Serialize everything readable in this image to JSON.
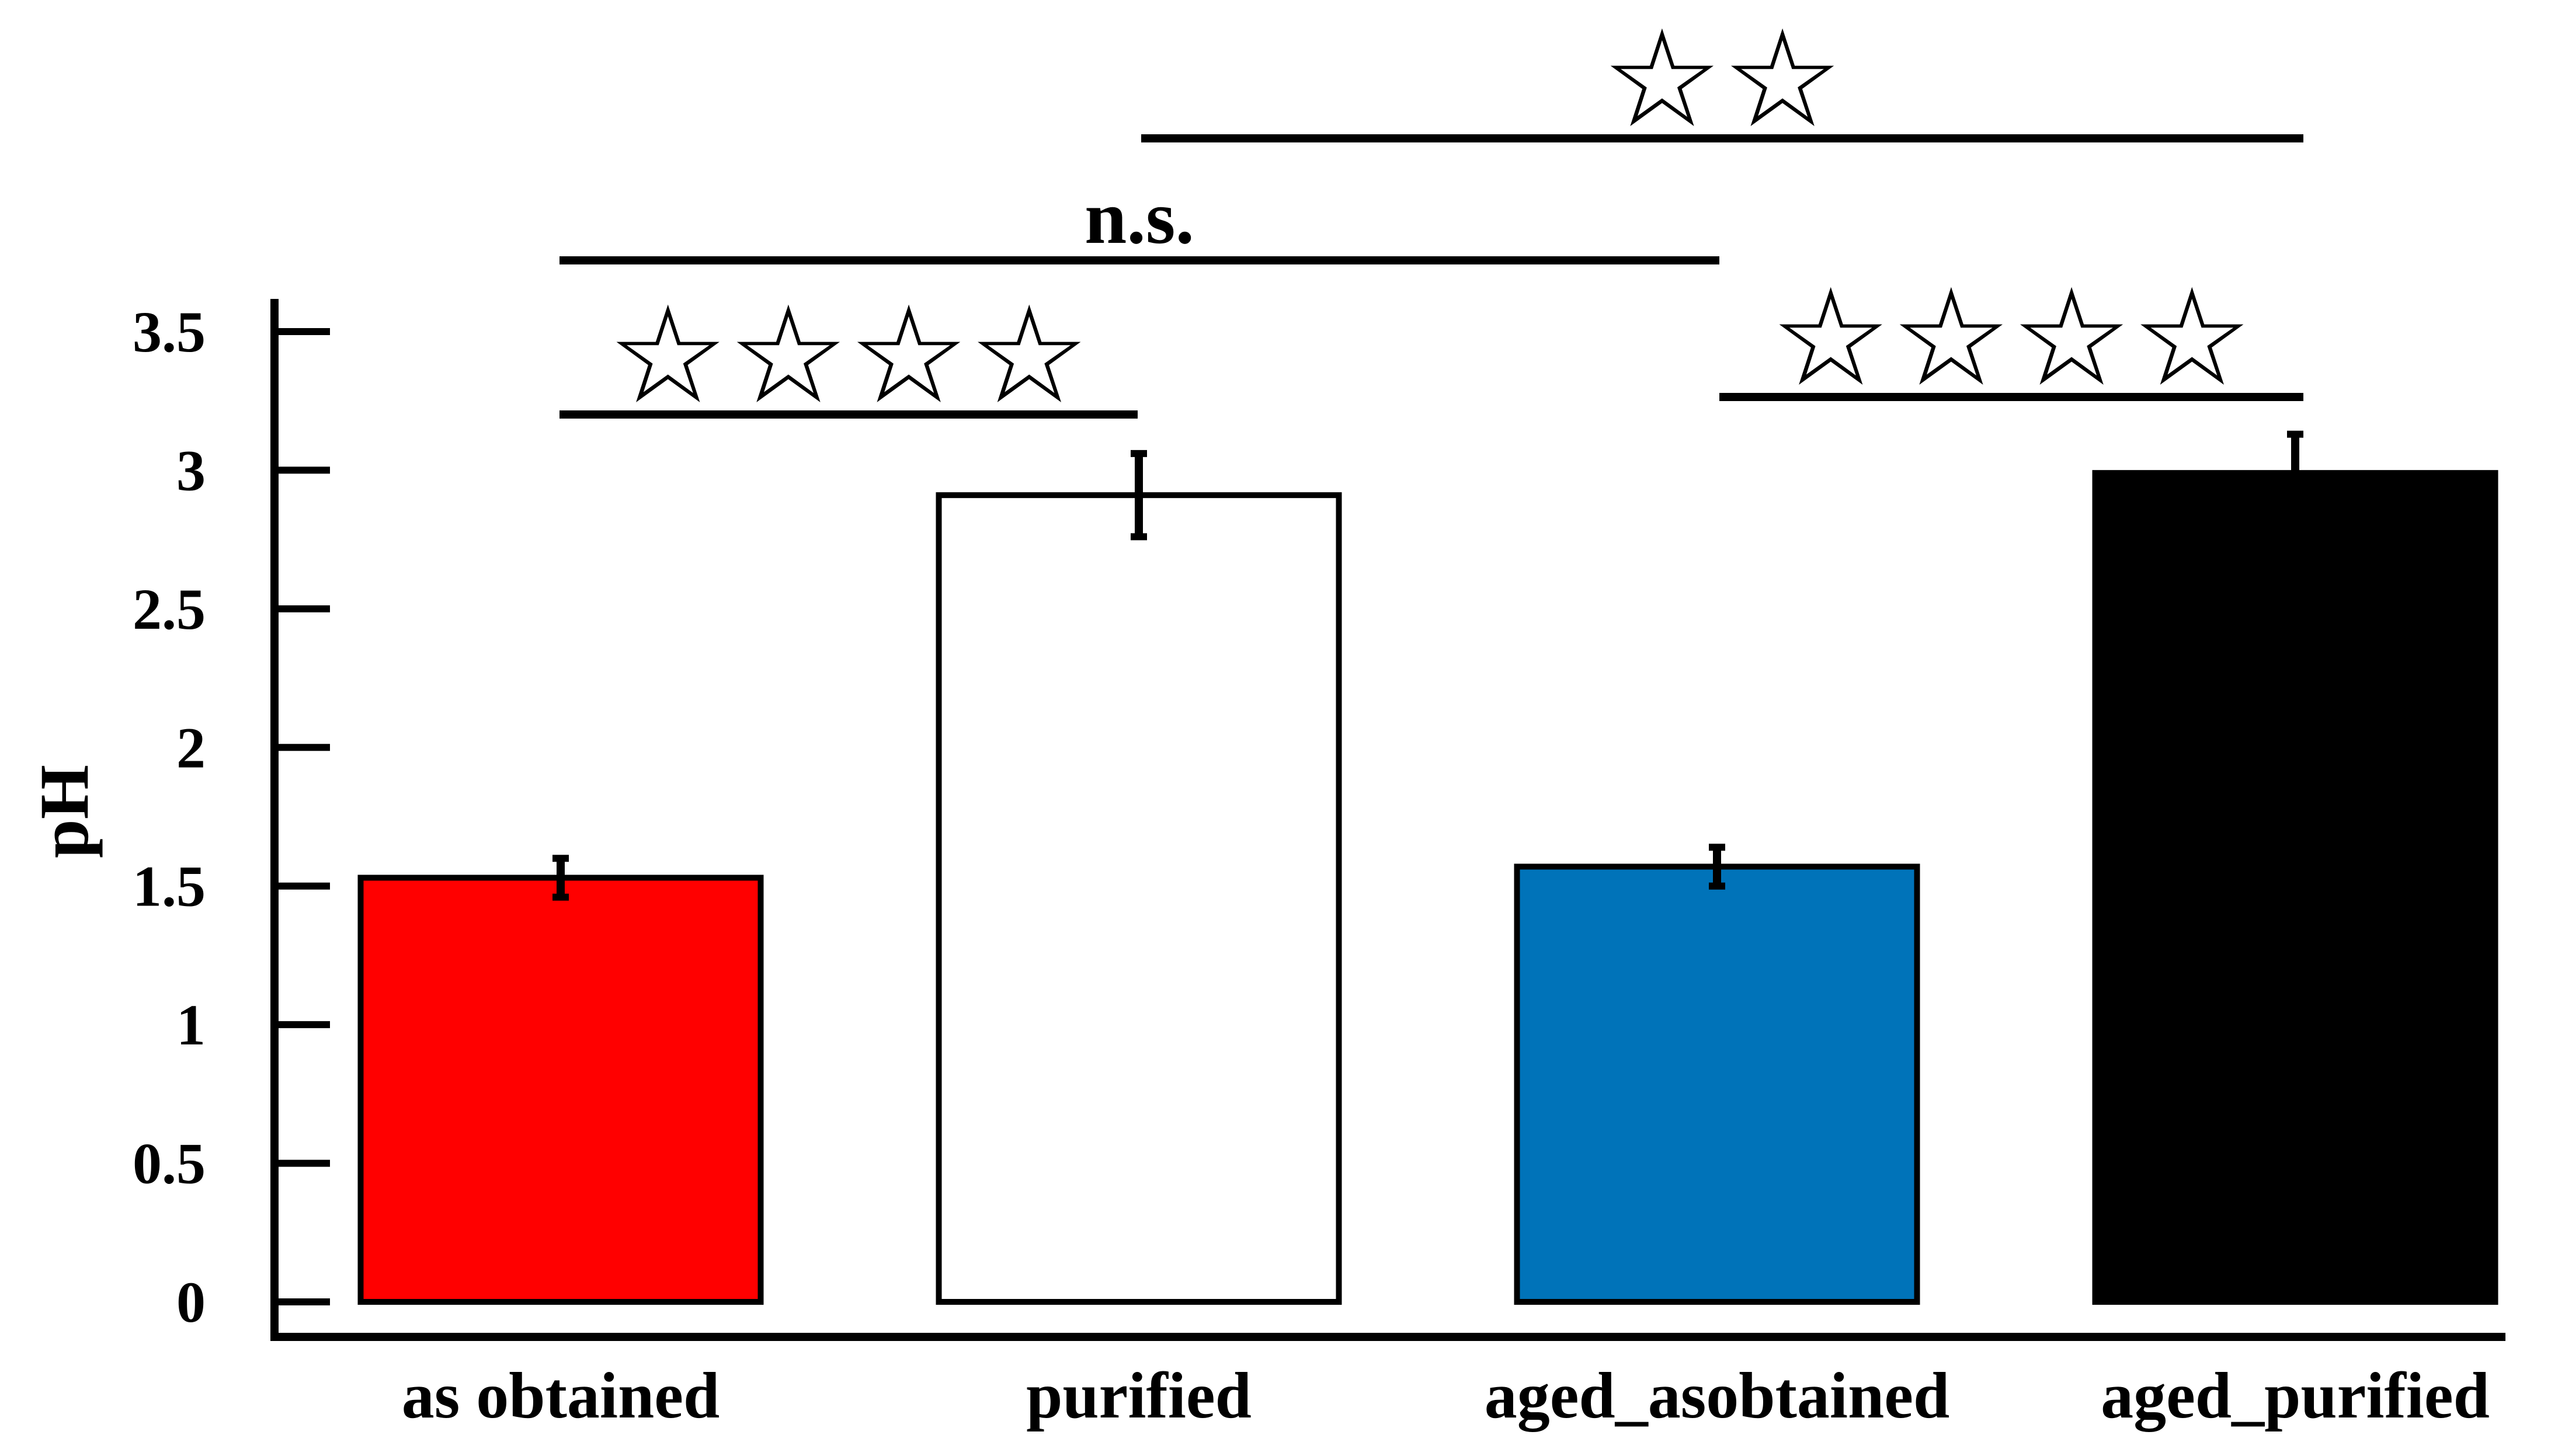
{
  "chart_data": {
    "type": "bar",
    "title": "",
    "xlabel": "",
    "ylabel": "pH",
    "ylim": [
      0,
      3.5
    ],
    "yticks": [
      {
        "value": 0,
        "label": "0"
      },
      {
        "value": 0.5,
        "label": "0.5"
      },
      {
        "value": 1,
        "label": "1"
      },
      {
        "value": 1.5,
        "label": "1.5"
      },
      {
        "value": 2,
        "label": "2"
      },
      {
        "value": 2.5,
        "label": "2.5"
      },
      {
        "value": 3,
        "label": "3"
      },
      {
        "value": 3.5,
        "label": "3.5"
      }
    ],
    "categories": [
      "as obtained",
      "purified",
      "aged_asobtained",
      "aged_purified"
    ],
    "values": [
      1.53,
      2.91,
      1.57,
      2.99
    ],
    "errors": [
      0.07,
      0.15,
      0.07,
      0.14
    ],
    "colors": [
      "#ff0000",
      "#ffffff",
      "#0073b9",
      "#000000"
    ],
    "grid": false,
    "significance": [
      {
        "from": 0,
        "to": 1,
        "label": "☆☆☆☆",
        "level": 0
      },
      {
        "from": 2,
        "to": 3,
        "label": "☆☆☆☆",
        "level": 0
      },
      {
        "from": 0,
        "to": 2,
        "label": "n.s.",
        "level": 1
      },
      {
        "from": 1,
        "to": 3,
        "label": "☆☆",
        "level": 2
      }
    ]
  }
}
